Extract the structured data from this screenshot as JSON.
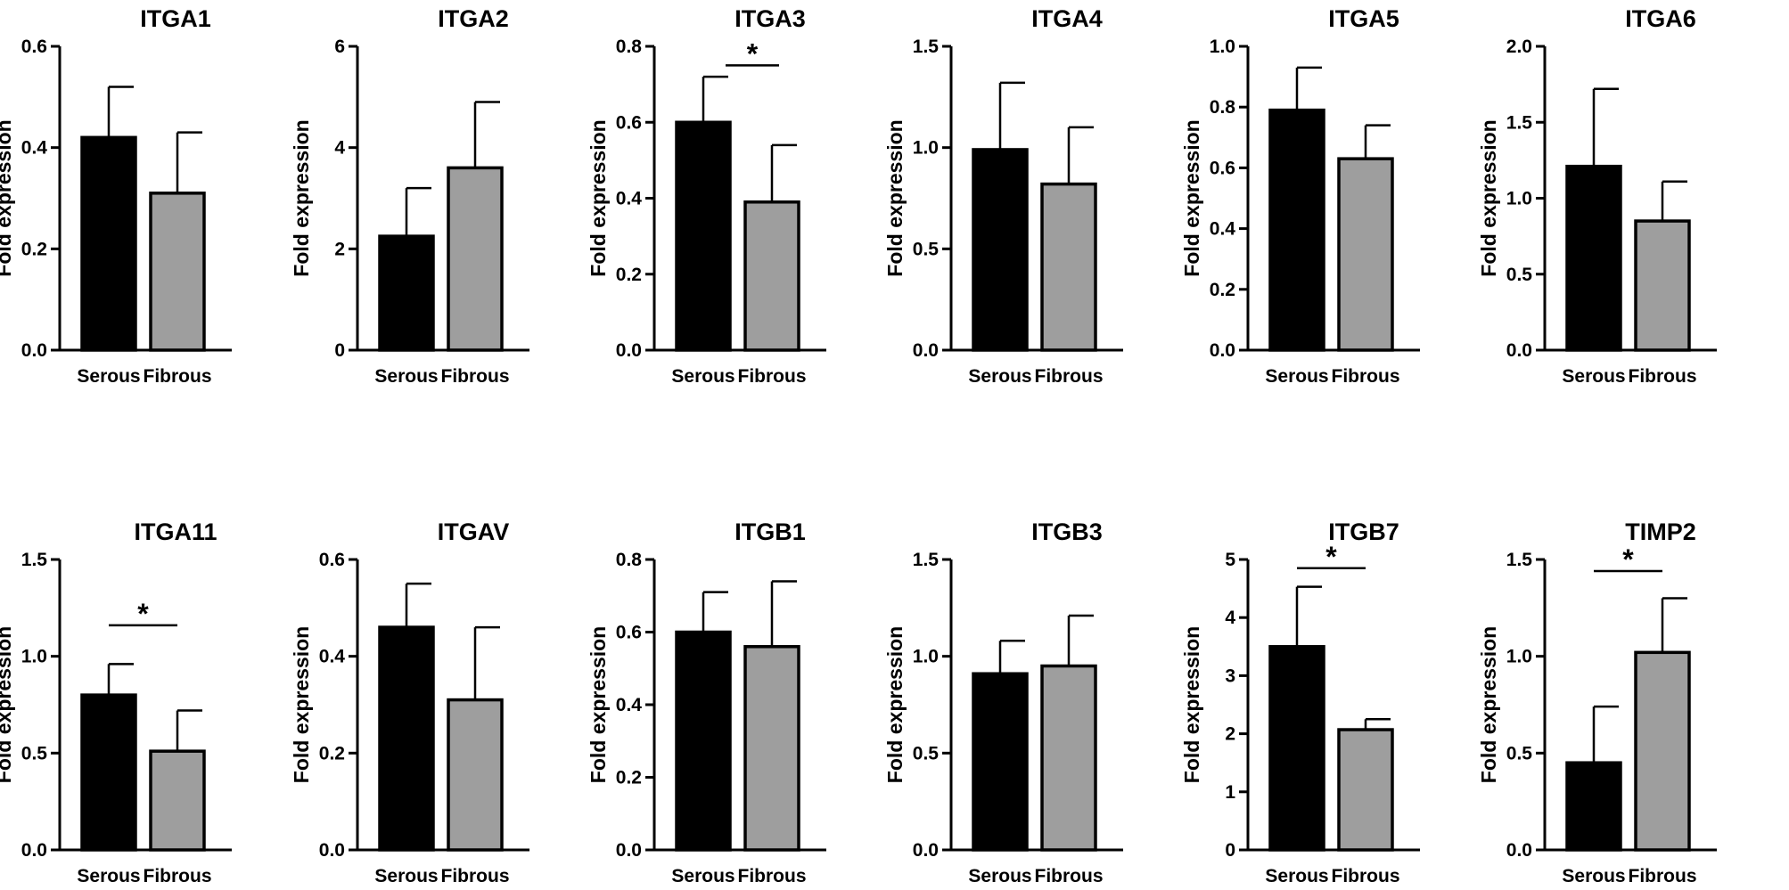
{
  "figure": {
    "background": "#ffffff"
  },
  "chart_data": [
    {
      "type": "bar",
      "title": "ITGA1",
      "ylabel": "Fold expression",
      "categories": [
        "Serous",
        "Fibrous"
      ],
      "values": [
        0.42,
        0.31
      ],
      "errors": [
        0.1,
        0.12
      ],
      "ylim": [
        0,
        0.6
      ],
      "yticks": [
        0.0,
        0.2,
        0.4,
        0.6
      ],
      "ytick_labels": [
        "0.0",
        "0.2",
        "0.4",
        "0.6"
      ],
      "significance": null,
      "colors": [
        "#000000",
        "#9e9e9e"
      ]
    },
    {
      "type": "bar",
      "title": "ITGA2",
      "ylabel": "Fold expression",
      "categories": [
        "Serous",
        "Fibrous"
      ],
      "values": [
        2.25,
        3.6
      ],
      "errors": [
        0.95,
        1.3
      ],
      "ylim": [
        0,
        6
      ],
      "yticks": [
        0,
        2,
        4,
        6
      ],
      "ytick_labels": [
        "0",
        "2",
        "4",
        "6"
      ],
      "significance": null,
      "colors": [
        "#000000",
        "#9e9e9e"
      ]
    },
    {
      "type": "bar",
      "title": "ITGA3",
      "ylabel": "Fold expression",
      "categories": [
        "Serous",
        "Fibrous"
      ],
      "values": [
        0.6,
        0.39
      ],
      "errors": [
        0.12,
        0.15
      ],
      "ylim": [
        0,
        0.8
      ],
      "yticks": [
        0.0,
        0.2,
        0.4,
        0.6,
        0.8
      ],
      "ytick_labels": [
        "0.0",
        "0.2",
        "0.4",
        "0.6",
        "0.8"
      ],
      "significance": {
        "label": "*",
        "level": 0.75,
        "span": "offset"
      },
      "colors": [
        "#000000",
        "#9e9e9e"
      ]
    },
    {
      "type": "bar",
      "title": "ITGA4",
      "ylabel": "Fold expression",
      "categories": [
        "Serous",
        "Fibrous"
      ],
      "values": [
        0.99,
        0.82
      ],
      "errors": [
        0.33,
        0.28
      ],
      "ylim": [
        0,
        1.5
      ],
      "yticks": [
        0.0,
        0.5,
        1.0,
        1.5
      ],
      "ytick_labels": [
        "0.0",
        "0.5",
        "1.0",
        "1.5"
      ],
      "significance": null,
      "colors": [
        "#000000",
        "#9e9e9e"
      ]
    },
    {
      "type": "bar",
      "title": "ITGA5",
      "ylabel": "Fold expression",
      "categories": [
        "Serous",
        "Fibrous"
      ],
      "values": [
        0.79,
        0.63
      ],
      "errors": [
        0.14,
        0.11
      ],
      "ylim": [
        0,
        1.0
      ],
      "yticks": [
        0.0,
        0.2,
        0.4,
        0.6,
        0.8,
        1.0
      ],
      "ytick_labels": [
        "0.0",
        "0.2",
        "0.4",
        "0.6",
        "0.8",
        "1.0"
      ],
      "significance": null,
      "colors": [
        "#000000",
        "#9e9e9e"
      ]
    },
    {
      "type": "bar",
      "title": "ITGA6",
      "ylabel": "Fold expression",
      "categories": [
        "Serous",
        "Fibrous"
      ],
      "values": [
        1.21,
        0.85
      ],
      "errors": [
        0.51,
        0.26
      ],
      "ylim": [
        0,
        2.0
      ],
      "yticks": [
        0.0,
        0.5,
        1.0,
        1.5,
        2.0
      ],
      "ytick_labels": [
        "0.0",
        "0.5",
        "1.0",
        "1.5",
        "2.0"
      ],
      "significance": null,
      "colors": [
        "#000000",
        "#9e9e9e"
      ]
    },
    {
      "type": "bar",
      "title": "ITGA11",
      "ylabel": "Fold expression",
      "categories": [
        "Serous",
        "Fibrous"
      ],
      "values": [
        0.8,
        0.51
      ],
      "errors": [
        0.16,
        0.21
      ],
      "ylim": [
        0,
        1.5
      ],
      "yticks": [
        0.0,
        0.5,
        1.0,
        1.5
      ],
      "ytick_labels": [
        "0.0",
        "0.5",
        "1.0",
        "1.5"
      ],
      "significance": {
        "label": "*",
        "level": 1.16,
        "span": "centers"
      },
      "colors": [
        "#000000",
        "#9e9e9e"
      ]
    },
    {
      "type": "bar",
      "title": "ITGAV",
      "ylabel": "Fold expression",
      "categories": [
        "Serous",
        "Fibrous"
      ],
      "values": [
        0.46,
        0.31
      ],
      "errors": [
        0.09,
        0.15
      ],
      "ylim": [
        0,
        0.6
      ],
      "yticks": [
        0.0,
        0.2,
        0.4,
        0.6
      ],
      "ytick_labels": [
        "0.0",
        "0.2",
        "0.4",
        "0.6"
      ],
      "significance": null,
      "colors": [
        "#000000",
        "#9e9e9e"
      ]
    },
    {
      "type": "bar",
      "title": "ITGB1",
      "ylabel": "Fold expression",
      "categories": [
        "Serous",
        "Fibrous"
      ],
      "values": [
        0.6,
        0.56
      ],
      "errors": [
        0.11,
        0.18
      ],
      "ylim": [
        0,
        0.8
      ],
      "yticks": [
        0.0,
        0.2,
        0.4,
        0.6,
        0.8
      ],
      "ytick_labels": [
        "0.0",
        "0.2",
        "0.4",
        "0.6",
        "0.8"
      ],
      "significance": null,
      "colors": [
        "#000000",
        "#9e9e9e"
      ]
    },
    {
      "type": "bar",
      "title": "ITGB3",
      "ylabel": "Fold expression",
      "categories": [
        "Serous",
        "Fibrous"
      ],
      "values": [
        0.91,
        0.95
      ],
      "errors": [
        0.17,
        0.26
      ],
      "ylim": [
        0,
        1.5
      ],
      "yticks": [
        0.0,
        0.5,
        1.0,
        1.5
      ],
      "ytick_labels": [
        "0.0",
        "0.5",
        "1.0",
        "1.5"
      ],
      "significance": null,
      "colors": [
        "#000000",
        "#9e9e9e"
      ]
    },
    {
      "type": "bar",
      "title": "ITGB7",
      "ylabel": "Fold expression",
      "categories": [
        "Serous",
        "Fibrous"
      ],
      "values": [
        3.5,
        2.07
      ],
      "errors": [
        1.03,
        0.18
      ],
      "ylim": [
        0,
        5
      ],
      "yticks": [
        0,
        1,
        2,
        3,
        4,
        5
      ],
      "ytick_labels": [
        "0",
        "1",
        "2",
        "3",
        "4",
        "5"
      ],
      "significance": {
        "label": "*",
        "level": 4.85,
        "span": "centers"
      },
      "colors": [
        "#000000",
        "#9e9e9e"
      ]
    },
    {
      "type": "bar",
      "title": "TIMP2",
      "ylabel": "Fold expression",
      "categories": [
        "Serous",
        "Fibrous"
      ],
      "values": [
        0.45,
        1.02
      ],
      "errors": [
        0.29,
        0.28
      ],
      "ylim": [
        0,
        1.5
      ],
      "yticks": [
        0.0,
        0.5,
        1.0,
        1.5
      ],
      "ytick_labels": [
        "0.0",
        "0.5",
        "1.0",
        "1.5"
      ],
      "significance": {
        "label": "*",
        "level": 1.44,
        "span": "centers"
      },
      "colors": [
        "#000000",
        "#9e9e9e"
      ]
    }
  ]
}
